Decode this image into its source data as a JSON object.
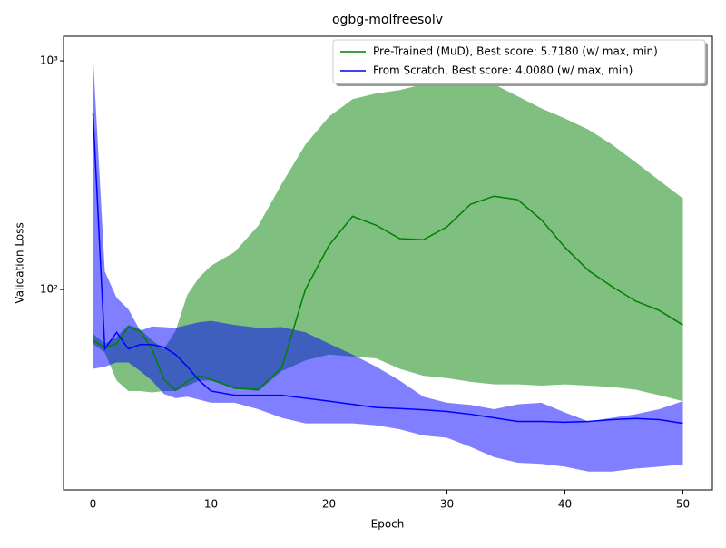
{
  "chart_data": {
    "type": "line",
    "title": "ogbg-molfreesolv",
    "xlabel": "Epoch",
    "ylabel": "Validation Loss",
    "x": [
      0,
      1,
      2,
      3,
      4,
      5,
      6,
      7,
      8,
      9,
      10,
      12,
      14,
      16,
      18,
      20,
      22,
      24,
      26,
      28,
      30,
      32,
      34,
      36,
      38,
      40,
      42,
      44,
      46,
      48,
      50
    ],
    "xlim": [
      -2.5,
      52.5
    ],
    "xticks": [
      0,
      10,
      20,
      30,
      40,
      50
    ],
    "ylim": [
      13.3,
      1280
    ],
    "log_y": true,
    "yticks": [
      {
        "value": 100,
        "label": "10²"
      },
      {
        "value": 1000,
        "label": "10³"
      }
    ],
    "legend_loc": "upper right",
    "series": [
      {
        "name": "Pre-Trained (MuD), Best score: 5.7180 (w/ max, min)",
        "color": "green",
        "values": [
          60,
          55.7,
          58,
          68.7,
          65.7,
          55,
          40.5,
          36.3,
          39.8,
          42,
          40.5,
          37,
          36.6,
          45.6,
          100,
          156,
          209,
          191,
          167,
          165,
          188,
          236,
          256,
          247,
          202,
          153,
          121,
          103,
          89,
          81,
          70
        ],
        "upper": [
          64,
          58,
          62,
          70,
          67,
          60,
          55,
          66,
          95,
          113,
          127,
          146,
          190,
          290,
          430,
          570,
          680,
          720,
          745,
          790,
          810,
          810,
          790,
          700,
          620,
          560,
          500,
          430,
          360,
          300,
          250
        ],
        "lower": [
          58,
          53,
          40,
          36,
          36,
          35.5,
          36,
          36,
          38,
          40,
          40,
          37,
          36,
          44,
          49,
          52,
          51,
          50,
          45,
          42,
          41,
          39.5,
          38.5,
          38.5,
          38,
          38.5,
          38,
          37.5,
          36.5,
          34.5,
          32.5
        ]
      },
      {
        "name": "From Scratch, Best score: 4.0080 (w/ max, min)",
        "color": "blue",
        "values": [
          590,
          55,
          65,
          55,
          57.5,
          57.5,
          56,
          52,
          46,
          40,
          36,
          34.5,
          34.5,
          34.5,
          33.5,
          32.5,
          31.5,
          30.5,
          30.2,
          29.8,
          29.3,
          28.5,
          27.5,
          26.5,
          26.5,
          26.3,
          26.5,
          27,
          27.3,
          27,
          26
        ],
        "upper": [
          1050,
          120,
          92,
          82,
          66,
          69,
          68.5,
          68,
          70,
          72,
          73,
          70,
          68,
          68.5,
          65,
          58,
          52,
          46,
          40,
          34,
          32,
          31.3,
          30,
          31.5,
          32,
          29,
          26.5,
          27.5,
          28.5,
          30,
          32.5
        ],
        "lower": [
          45,
          46,
          48,
          48,
          44,
          40,
          35,
          33.5,
          34,
          33,
          32,
          32,
          30,
          27.5,
          26,
          26,
          26,
          25.5,
          24.5,
          23,
          22.5,
          20.5,
          18.5,
          17.5,
          17.3,
          16.8,
          16,
          16,
          16.5,
          16.8,
          17.2
        ]
      }
    ]
  }
}
